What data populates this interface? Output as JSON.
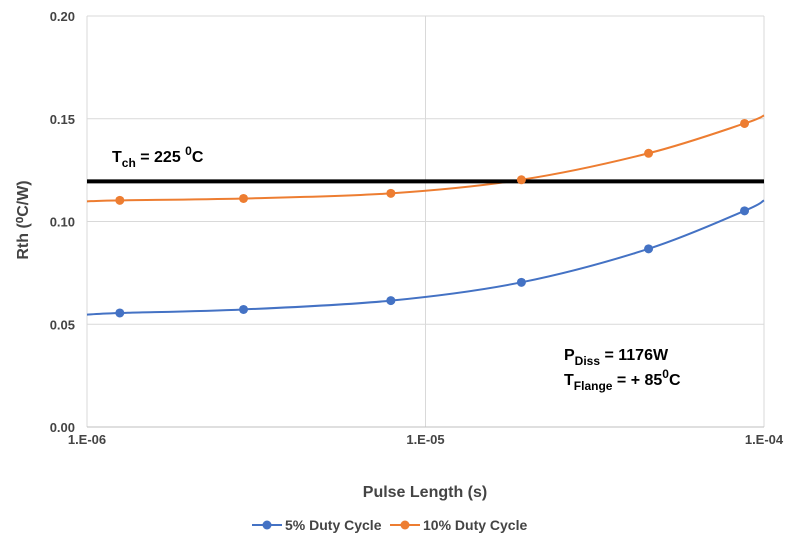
{
  "chart_data": {
    "type": "line",
    "xlabel": "Pulse Length (s)",
    "ylabel": "Rth (⁰C/W)",
    "x_scale": "log",
    "xlim": [
      1e-06,
      0.0001
    ],
    "ylim": [
      0,
      0.2
    ],
    "x_ticks": [
      {
        "value": 1e-06,
        "label": "1.E-06"
      },
      {
        "value": 1e-05,
        "label": "1.E-05"
      },
      {
        "value": 0.0001,
        "label": "1.E-04"
      }
    ],
    "y_ticks": [
      {
        "value": 0.0,
        "label": "0.00"
      },
      {
        "value": 0.05,
        "label": "0.05"
      },
      {
        "value": 0.1,
        "label": "0.10"
      },
      {
        "value": 0.15,
        "label": "0.15"
      },
      {
        "value": 0.2,
        "label": "0.20"
      }
    ],
    "grid": true,
    "legend_position": "bottom",
    "series": [
      {
        "name": "5% Duty Cycle",
        "color": "#4472C4",
        "x": [
          1.25e-06,
          2.9e-06,
          7.9e-06,
          1.92e-05,
          4.56e-05,
          8.76e-05
        ],
        "y": [
          0.0555,
          0.0572,
          0.0615,
          0.0704,
          0.0867,
          0.1052
        ]
      },
      {
        "name": "10% Duty Cycle",
        "color": "#ED7D31",
        "x": [
          1.25e-06,
          2.9e-06,
          7.9e-06,
          1.92e-05,
          4.56e-05,
          8.76e-05
        ],
        "y": [
          0.1103,
          0.1112,
          0.1137,
          0.1203,
          0.1332,
          0.1477
        ]
      }
    ],
    "curve_extension": {
      "5% Duty Cycle": {
        "start": [
          1e-06,
          0.0547
        ],
        "end": [
          0.0001,
          0.1103
        ]
      },
      "10% Duty Cycle": {
        "start": [
          1e-06,
          0.1098
        ],
        "end": [
          0.0001,
          0.1516
        ]
      }
    },
    "threshold": {
      "y": 0.1195,
      "color": "#000000",
      "label_main": "T",
      "label_sub": "ch",
      "label_value": " = 225 ",
      "label_sup": "0",
      "label_unit": "C"
    },
    "annotation": {
      "line1_main": "P",
      "line1_sub": "Diss",
      "line1_rest": " = 1176W",
      "line2_main": "T",
      "line2_sub": "Flange",
      "line2_rest": " = + 85",
      "line2_sup": "0",
      "line2_unit": "C"
    }
  }
}
